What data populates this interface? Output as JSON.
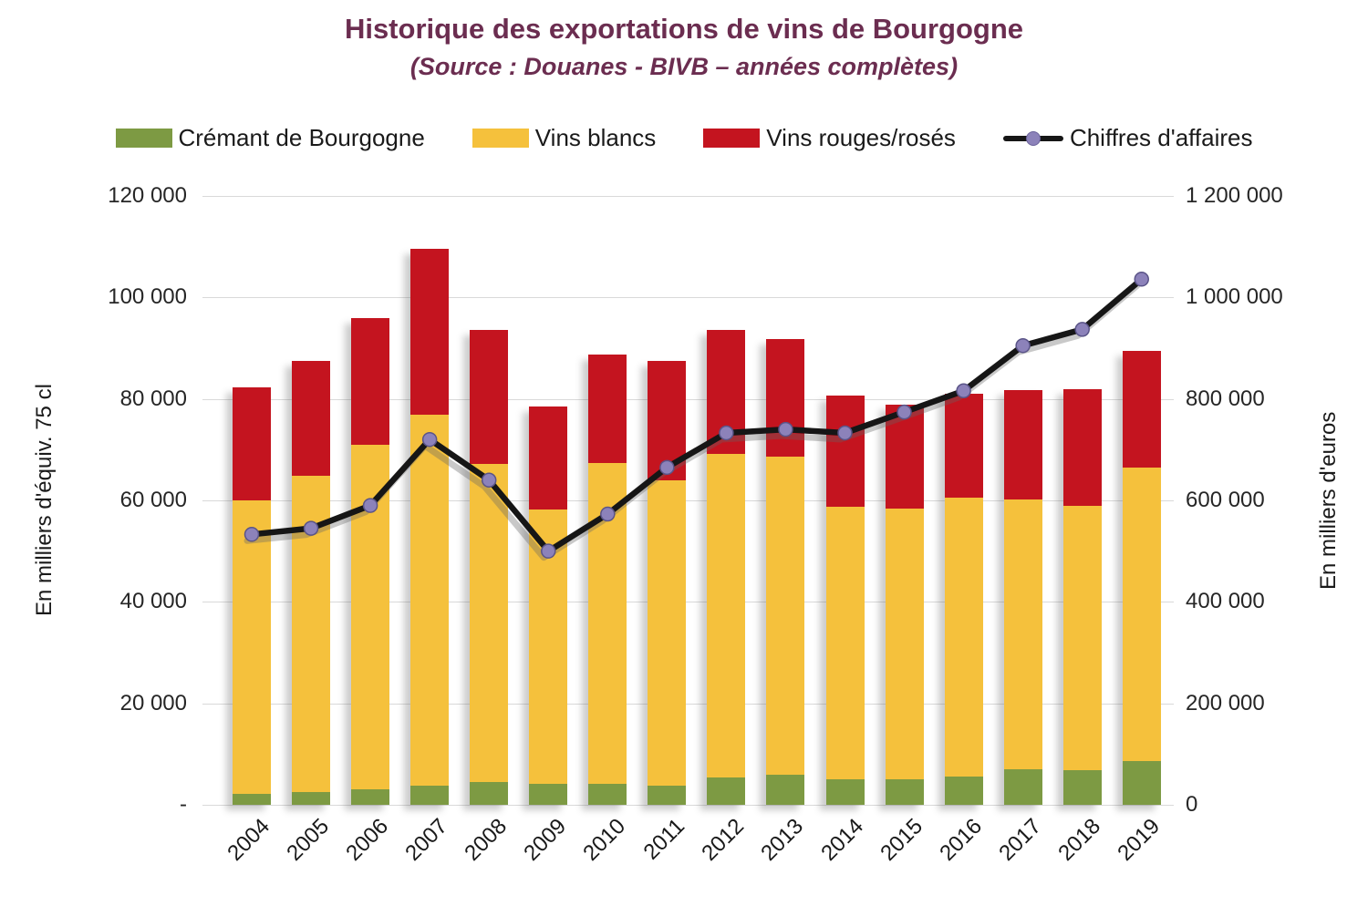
{
  "chart_data": {
    "type": "bar",
    "subtype": "stacked-columns-with-line-overlay",
    "title": "Historique des exportations de vins de Bourgogne",
    "subtitle": "(Source : Douanes - BIVB – années complètes)",
    "title_color": "#6B2D50",
    "ylabel_left": "En milliers d'équiv. 75 cl",
    "ylabel_right": "En milliers d'euros",
    "ylim_left": [
      0,
      120000
    ],
    "ylim_right": [
      0,
      1200000
    ],
    "yticks_left": [
      "120 000",
      "100 000",
      "80 000",
      "60 000",
      "40 000",
      "20 000",
      "-"
    ],
    "yticks_right": [
      "1 200 000",
      "1 000 000",
      "800 000",
      "600 000",
      "400 000",
      "200 000",
      "0"
    ],
    "grid": true,
    "grid_color": "#D9D9D9",
    "legend_position": "top",
    "categories": [
      "2004",
      "2005",
      "2006",
      "2007",
      "2008",
      "2009",
      "2010",
      "2011",
      "2012",
      "2013",
      "2014",
      "2015",
      "2016",
      "2017",
      "2018",
      "2019"
    ],
    "series": [
      {
        "name": "Crémant de Bourgogne",
        "kind": "bar-stack",
        "axis": "left",
        "color": "#7D9A43",
        "values": [
          2200,
          2600,
          3100,
          3800,
          4500,
          4200,
          4100,
          3700,
          5400,
          5900,
          5100,
          5100,
          5500,
          7000,
          6900,
          8600
        ]
      },
      {
        "name": "Vins blancs",
        "kind": "bar-stack",
        "axis": "left",
        "color": "#F5C13C",
        "values": [
          57800,
          62300,
          67800,
          73000,
          62600,
          54000,
          63200,
          60200,
          63800,
          62700,
          53600,
          53300,
          55000,
          53100,
          52100,
          57900
        ]
      },
      {
        "name": "Vins rouges/rosés",
        "kind": "bar-stack",
        "axis": "left",
        "color": "#C4141F",
        "values": [
          22200,
          22600,
          25000,
          32800,
          26500,
          20300,
          21500,
          23500,
          24400,
          23200,
          21900,
          20500,
          20500,
          21600,
          22900,
          23000
        ]
      },
      {
        "name": "Chiffres d'affaires",
        "kind": "line",
        "axis": "right",
        "color": "#161616",
        "marker_color": "#8C82BA",
        "values": [
          533000,
          545000,
          590000,
          720000,
          640000,
          500000,
          573000,
          665000,
          733000,
          740000,
          733000,
          774000,
          816000,
          905000,
          937000,
          1036000
        ]
      }
    ]
  }
}
